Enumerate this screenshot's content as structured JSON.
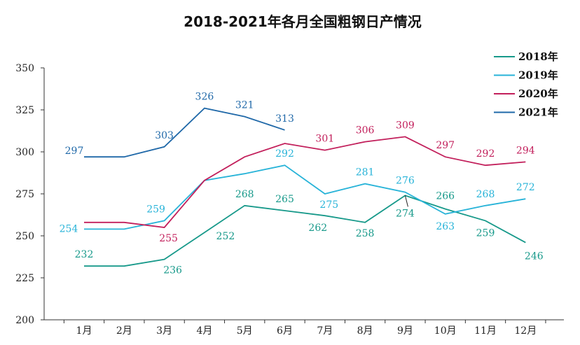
{
  "chart_data": {
    "type": "line",
    "title": "2018-2021年各月全国粗钢日产情况",
    "xlabel": "",
    "ylabel": "",
    "categories": [
      "1月",
      "2月",
      "3月",
      "4月",
      "5月",
      "6月",
      "7月",
      "8月",
      "9月",
      "10月",
      "11月",
      "12月"
    ],
    "ylim": [
      200,
      350
    ],
    "yticks": [
      200,
      225,
      250,
      275,
      300,
      325,
      350
    ],
    "grid": false,
    "legend_position": "top-right",
    "series": [
      {
        "name": "2018年",
        "color": "#17998a",
        "values": [
          232,
          232,
          236,
          252,
          268,
          265,
          262,
          258,
          274,
          266,
          259,
          246
        ],
        "labeled": [
          true,
          false,
          true,
          true,
          true,
          true,
          true,
          true,
          true,
          true,
          true,
          true
        ]
      },
      {
        "name": "2019年",
        "color": "#27b3d8",
        "values": [
          254,
          254,
          259,
          283,
          287,
          292,
          275,
          281,
          276,
          263,
          268,
          272
        ],
        "labeled": [
          true,
          false,
          true,
          false,
          false,
          true,
          true,
          true,
          true,
          true,
          true,
          true
        ]
      },
      {
        "name": "2020年",
        "color": "#c21f5b",
        "values": [
          258,
          258,
          255,
          283,
          297,
          305,
          301,
          306,
          309,
          297,
          292,
          294
        ],
        "labeled": [
          false,
          false,
          true,
          false,
          false,
          false,
          true,
          true,
          true,
          true,
          true,
          true
        ]
      },
      {
        "name": "2021年",
        "color": "#1f68a8",
        "values": [
          297,
          297,
          303,
          326,
          321,
          313,
          null,
          null,
          null,
          null,
          null,
          null
        ],
        "labeled": [
          true,
          false,
          true,
          true,
          true,
          true,
          false,
          false,
          false,
          false,
          false,
          false
        ]
      }
    ]
  }
}
